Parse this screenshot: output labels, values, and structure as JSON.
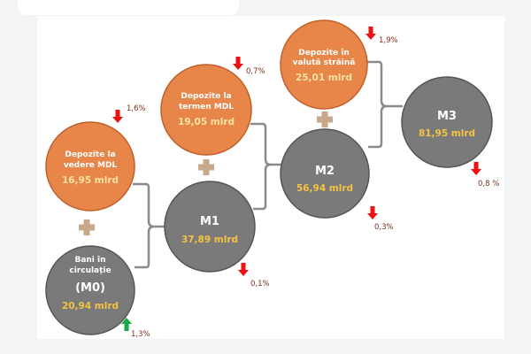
{
  "nodes": {
    "vedere": {
      "label1": "Depozite la",
      "label2": "vedere MDL",
      "value": "16,95 mlrd",
      "change": "1,6%",
      "direction": "down"
    },
    "m0": {
      "label1": "Bani în",
      "label2": "circulație",
      "label3": "(M0)",
      "value": "20,94 mlrd",
      "change": "1,3%",
      "direction": "up"
    },
    "termen": {
      "label1": "Depozite la",
      "label2": "termen MDL",
      "value": "19,05 mlrd",
      "change": "0,7%",
      "direction": "down"
    },
    "m1": {
      "label": "M1",
      "value": "37,89 mlrd",
      "change": "0,1%",
      "direction": "down"
    },
    "valuta": {
      "label1": "Depozite în",
      "label2": "valută străină",
      "value": "25,01 mlrd",
      "change": "1,9%",
      "direction": "down"
    },
    "m2": {
      "label": "M2",
      "value": "56,94 mlrd",
      "change": "0,3%",
      "direction": "down"
    },
    "m3": {
      "label": "M3",
      "value": "81,95 mlrd",
      "change": "0,8 %",
      "direction": "down"
    }
  },
  "colors": {
    "orange": "#e8864a",
    "gray": "#7a7a7a",
    "down": "#ee1111",
    "up": "#11aa44",
    "plus": "#c8a98a"
  }
}
